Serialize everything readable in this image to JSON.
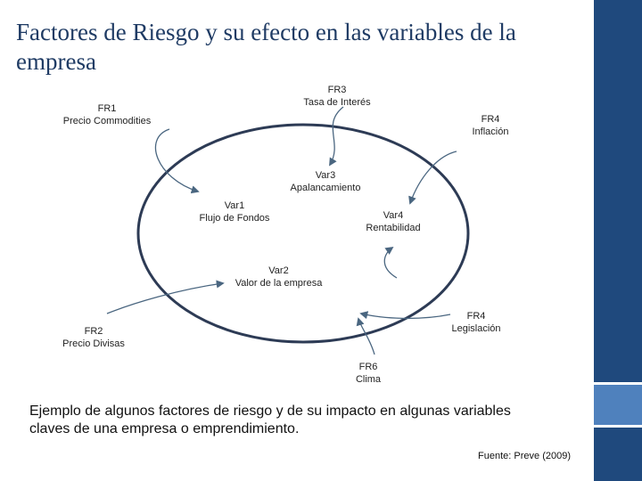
{
  "title": "Factores de Riesgo y su efecto en las variables de la empresa",
  "nodes": {
    "fr1": {
      "code": "FR1",
      "name": "Precio Commodities"
    },
    "fr3": {
      "code": "FR3",
      "name": "Tasa de Interés"
    },
    "fr4_inflacion": {
      "code": "FR4",
      "name": "Inflación"
    },
    "var3": {
      "code": "Var3",
      "name": "Apalancamiento"
    },
    "var1": {
      "code": "Var1",
      "name": "Flujo de Fondos"
    },
    "var4": {
      "code": "Var4",
      "name": "Rentabilidad"
    },
    "var2": {
      "code": "Var2",
      "name": "Valor de la empresa"
    },
    "fr4_legislacion": {
      "code": "FR4",
      "name": "Legislación"
    },
    "fr2": {
      "code": "FR2",
      "name": "Precio Divisas"
    },
    "fr6": {
      "code": "FR6",
      "name": "Clima"
    }
  },
  "caption": "Ejemplo de algunos factores de riesgo y de su impacto en algunas variables claves de una empresa o emprendimiento.",
  "source": "Fuente: Preve (2009)",
  "colors": {
    "title": "#1f3b64",
    "ellipse": "#2d3b55",
    "arrow": "#4a6680",
    "bar_dark": "#1f497d",
    "bar_light": "#4f81bd"
  }
}
